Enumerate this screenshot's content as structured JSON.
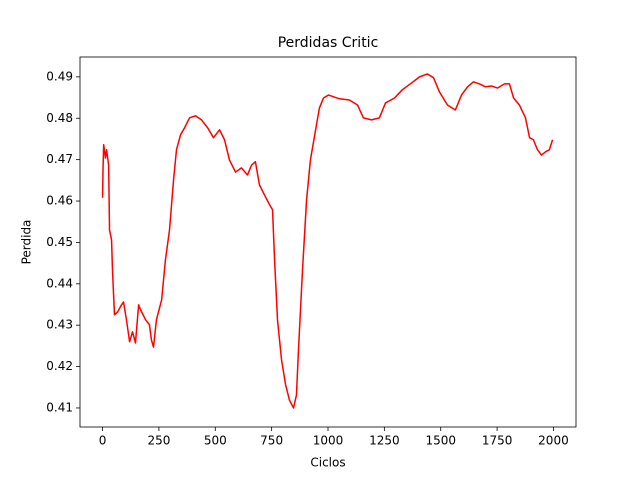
{
  "chart_data": {
    "type": "line",
    "title": "Perdidas Critic",
    "x_label": "Ciclos",
    "y_label": "Perdida",
    "color": "#ff0000",
    "x": [
      0,
      2,
      5,
      13,
      18,
      27,
      31,
      40,
      44,
      53,
      67,
      84,
      93,
      106,
      120,
      133,
      146,
      160,
      169,
      191,
      208,
      217,
      226,
      239,
      262,
      279,
      297,
      315,
      328,
      346,
      364,
      386,
      412,
      439,
      466,
      492,
      519,
      541,
      563,
      590,
      616,
      643,
      661,
      678,
      696,
      718,
      741,
      754,
      763,
      776,
      794,
      812,
      829,
      847,
      860,
      869,
      887,
      905,
      922,
      945,
      962,
      980,
      1002,
      1051,
      1095,
      1131,
      1157,
      1193,
      1228,
      1255,
      1295,
      1330,
      1370,
      1406,
      1441,
      1468,
      1494,
      1530,
      1565,
      1592,
      1619,
      1645,
      1672,
      1698,
      1725,
      1752,
      1783,
      1805,
      1823,
      1849,
      1876,
      1894,
      1911,
      1929,
      1947,
      1965,
      1982,
      1996
    ],
    "values": [
      0.4608,
      0.4675,
      0.4736,
      0.4704,
      0.4724,
      0.4687,
      0.453,
      0.4506,
      0.4434,
      0.4325,
      0.4332,
      0.4349,
      0.4356,
      0.4313,
      0.426,
      0.4284,
      0.4257,
      0.4349,
      0.4337,
      0.4313,
      0.4301,
      0.4264,
      0.4247,
      0.4313,
      0.4361,
      0.4458,
      0.453,
      0.4651,
      0.4724,
      0.476,
      0.4777,
      0.4801,
      0.4806,
      0.4796,
      0.4777,
      0.4753,
      0.4772,
      0.4748,
      0.4699,
      0.467,
      0.468,
      0.4663,
      0.4687,
      0.4695,
      0.4639,
      0.4615,
      0.4591,
      0.4579,
      0.4458,
      0.4313,
      0.4216,
      0.4156,
      0.4119,
      0.41,
      0.4131,
      0.424,
      0.4434,
      0.4603,
      0.4699,
      0.4772,
      0.4825,
      0.4849,
      0.4856,
      0.4847,
      0.4844,
      0.4832,
      0.4801,
      0.4796,
      0.4801,
      0.4837,
      0.4849,
      0.4869,
      0.4885,
      0.49,
      0.4907,
      0.4898,
      0.4864,
      0.4832,
      0.482,
      0.4856,
      0.4876,
      0.4888,
      0.4883,
      0.4876,
      0.4878,
      0.4873,
      0.4883,
      0.4883,
      0.4849,
      0.4832,
      0.4801,
      0.4753,
      0.4748,
      0.4724,
      0.4711,
      0.4719,
      0.4724,
      0.4748
    ],
    "xlim": [
      -100,
      2100
    ],
    "ylim": [
      0.4054,
      0.4948
    ],
    "xticks": [
      0,
      250,
      500,
      750,
      1000,
      1250,
      1500,
      1750,
      2000
    ],
    "yticks": [
      0.41,
      0.42,
      0.43,
      0.44,
      0.45,
      0.46,
      0.47,
      0.48,
      0.49
    ]
  }
}
